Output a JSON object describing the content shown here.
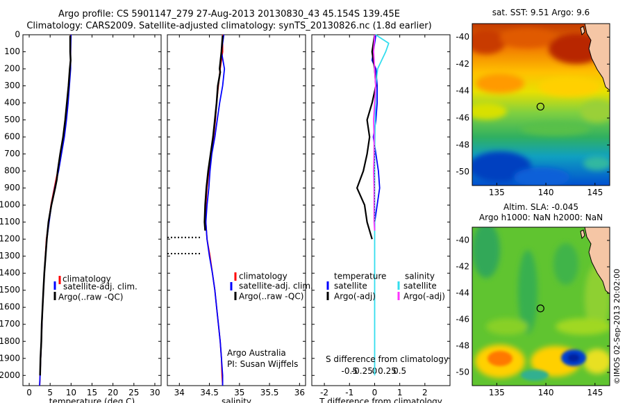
{
  "header": {
    "line1": "Argo profile: CS 5901147_279 27-Aug-2013 20130830_43 45.154S 139.45E",
    "line2": "Climatology: CARS2009. Satellite-adjusted climatology: synTS_20130826.nc (1.8d earlier)"
  },
  "side_stamp": "©IMOS 02-Sep-2013 20:02:00",
  "colors": {
    "climatology": "#ff0000",
    "satellite": "#0000ff",
    "argo": "#000000",
    "salinity_satellite": "#33ddee",
    "salinity_argo": "#ff33ff"
  },
  "legend": {
    "climatology": "climatology",
    "satellite_clim": "satellite-adj. clim.",
    "argo_raw": "Argo(..raw -QC)",
    "temperature_head": "temperature",
    "salinity_head": "salinity",
    "satellite": "satellite",
    "argo_adj": "Argo(-adj)"
  },
  "annotations": {
    "argo_australia": "Argo Australia",
    "pi": "PI: Susan Wijffels",
    "s_diff": "S difference from climatology"
  },
  "chart_data": [
    {
      "type": "line",
      "panel": "temperature",
      "xlabel": "temperature (deg C)",
      "ylabel": "",
      "xlim": [
        -1.5,
        31.5
      ],
      "ylim": [
        2060,
        0
      ],
      "xticks": [
        "0",
        "5",
        "10",
        "15",
        "20",
        "25",
        "30"
      ],
      "yticks": [
        "0",
        "100",
        "200",
        "300",
        "400",
        "500",
        "600",
        "700",
        "800",
        "900",
        "1000",
        "1100",
        "1200",
        "1300",
        "1400",
        "1500",
        "1600",
        "1700",
        "1800",
        "1900",
        "2000"
      ],
      "series": [
        {
          "name": "climatology",
          "depth": [
            0,
            100,
            200,
            300,
            400,
            500,
            600,
            700,
            800,
            900,
            1000,
            1200,
            1400,
            1600,
            1800,
            2000,
            2060
          ],
          "values": [
            9.9,
            9.9,
            9.8,
            9.5,
            9.2,
            8.8,
            8.2,
            7.5,
            6.8,
            6.0,
            5.2,
            4.1,
            3.6,
            3.2,
            2.9,
            2.6,
            2.5
          ]
        },
        {
          "name": "satellite-adj. clim.",
          "depth": [
            0,
            100,
            200,
            300,
            400,
            500,
            600,
            700,
            800,
            900,
            1000,
            1200,
            1400,
            1600,
            1800,
            2000,
            2060
          ],
          "values": [
            10.0,
            9.9,
            9.9,
            9.6,
            9.3,
            8.9,
            8.4,
            7.7,
            7.0,
            6.1,
            5.3,
            4.2,
            3.6,
            3.2,
            2.9,
            2.6,
            2.5
          ]
        },
        {
          "name": "Argo(..raw -QC)",
          "depth": [
            5,
            100,
            150,
            200,
            300,
            400,
            500,
            600,
            700,
            800,
            850,
            900,
            1000,
            1100,
            1200,
            1300,
            1400,
            1500,
            1600,
            1700,
            1800,
            1900,
            2000
          ],
          "values": [
            9.8,
            9.8,
            9.9,
            9.7,
            9.4,
            9.0,
            8.6,
            8.1,
            7.4,
            6.8,
            6.6,
            6.2,
            5.3,
            4.6,
            4.2,
            3.9,
            3.6,
            3.4,
            3.2,
            3.0,
            2.9,
            2.7,
            2.6
          ]
        }
      ]
    },
    {
      "type": "line",
      "panel": "salinity",
      "xlabel": "salinity",
      "xlim": [
        33.8,
        36.1
      ],
      "ylim": [
        2060,
        0
      ],
      "xticks": [
        "34",
        "34.5",
        "35",
        "35.5",
        "36"
      ],
      "series": [
        {
          "name": "climatology",
          "depth": [
            0,
            100,
            200,
            300,
            400,
            500,
            600,
            700,
            800,
            900,
            1000,
            1100,
            1200,
            1300,
            1400,
            1500,
            1600,
            1700,
            1800,
            1900,
            2000,
            2060
          ],
          "values": [
            34.72,
            34.72,
            34.68,
            34.65,
            34.62,
            34.6,
            34.57,
            34.53,
            34.49,
            34.46,
            34.44,
            34.44,
            34.46,
            34.51,
            34.55,
            34.59,
            34.62,
            34.65,
            34.68,
            34.7,
            34.71,
            34.72
          ]
        },
        {
          "name": "satellite-adj. clim.",
          "depth": [
            0,
            100,
            200,
            300,
            400,
            500,
            600,
            700,
            800,
            900,
            1000,
            1100,
            1200,
            1300,
            1400,
            1500,
            1600,
            1700,
            1800,
            1900,
            2000,
            2060
          ],
          "values": [
            34.74,
            34.7,
            34.75,
            34.72,
            34.67,
            34.63,
            34.59,
            34.54,
            34.51,
            34.49,
            34.46,
            34.44,
            34.46,
            34.5,
            34.55,
            34.59,
            34.62,
            34.65,
            34.68,
            34.7,
            34.72,
            34.72
          ]
        },
        {
          "name": "Argo(..raw -QC)",
          "depth": [
            5,
            100,
            200,
            220,
            300,
            400,
            500,
            600,
            700,
            800,
            900,
            1000,
            1100,
            1150
          ],
          "values": [
            34.72,
            34.7,
            34.67,
            34.68,
            34.64,
            34.62,
            34.59,
            34.56,
            34.52,
            34.48,
            34.45,
            34.43,
            34.42,
            34.43
          ]
        }
      ],
      "qc_gaps": [
        1190,
        1285
      ]
    },
    {
      "type": "line",
      "panel": "difference",
      "xlabel": "T difference from climatology",
      "xlabel_top": "S difference from climatology",
      "xlim": [
        -2.5,
        3.0
      ],
      "ylim": [
        2060,
        0
      ],
      "xticks": [
        "-2",
        "-1",
        "0",
        "1",
        "2"
      ],
      "xticks_s": [
        "-0.5",
        "-0.25",
        "0",
        "0.25",
        "0.5"
      ],
      "series": [
        {
          "name": "temperature satellite",
          "depth": [
            0,
            100,
            150,
            200,
            300,
            400,
            500,
            600,
            700,
            800,
            900,
            1000,
            1100,
            1150
          ],
          "values": [
            0.05,
            -0.05,
            -0.1,
            0.05,
            0.1,
            0.1,
            0.05,
            -0.05,
            0.05,
            0.15,
            0.2,
            0.1,
            0.0,
            0.0
          ]
        },
        {
          "name": "temperature Argo(-adj)",
          "depth": [
            0,
            100,
            200,
            300,
            400,
            450,
            500,
            600,
            700,
            800,
            900,
            950,
            1000,
            1100,
            1150,
            1200
          ],
          "values": [
            0.0,
            -0.1,
            0.0,
            0.05,
            -0.1,
            -0.2,
            -0.3,
            -0.2,
            -0.3,
            -0.45,
            -0.7,
            -0.55,
            -0.4,
            -0.3,
            -0.2,
            -0.1
          ]
        },
        {
          "name": "salinity satellite",
          "depth": [
            0,
            50,
            100,
            200,
            300,
            500,
            700,
            900,
            1100,
            1300,
            1500,
            1700,
            1900,
            2000
          ],
          "values": [
            0.02,
            0.28,
            0.22,
            0.06,
            0.02,
            0.01,
            0.0,
            0.0,
            0.0,
            0.0,
            0.0,
            0.0,
            0.0,
            0.0
          ]
        },
        {
          "name": "salinity Argo(-adj)",
          "depth": [
            0,
            100,
            200,
            300,
            400,
            500,
            600,
            700,
            800,
            900,
            1000,
            1100,
            1150
          ],
          "values": [
            0.0,
            -0.02,
            0.0,
            0.02,
            0.0,
            -0.02,
            -0.01,
            -0.01,
            -0.02,
            -0.01,
            -0.01,
            -0.01,
            0.0
          ]
        }
      ]
    },
    {
      "type": "heatmap",
      "panel": "sst-map",
      "title": "sat. SST: 9.51 Argo: 9.6",
      "xlim": [
        132.5,
        146.5
      ],
      "ylim": [
        -51,
        -39
      ],
      "xticks": [
        "135",
        "140",
        "145"
      ],
      "yticks": [
        "-40",
        "-42",
        "-44",
        "-46",
        "-48",
        "-50"
      ],
      "marker": {
        "lon": 139.45,
        "lat": -45.15
      }
    },
    {
      "type": "heatmap",
      "panel": "sla-map",
      "title": "Altim. SLA: -0.045",
      "subtitle": "Argo h1000: NaN h2000: NaN",
      "xlim": [
        132.5,
        146.5
      ],
      "ylim": [
        -51,
        -39
      ],
      "xticks": [
        "135",
        "140",
        "145"
      ],
      "yticks": [
        "-40",
        "-42",
        "-44",
        "-46",
        "-48",
        "-50"
      ],
      "marker": {
        "lon": 139.45,
        "lat": -45.15
      }
    }
  ]
}
